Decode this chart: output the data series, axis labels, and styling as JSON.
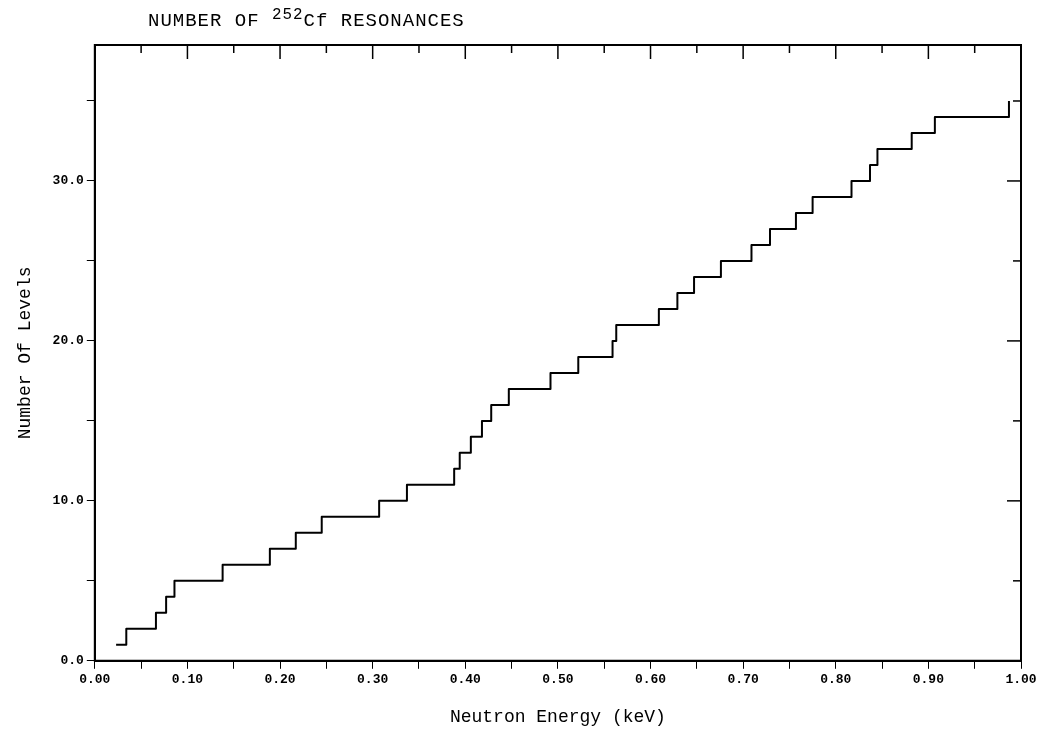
{
  "chart_data": {
    "type": "step",
    "title": "NUMBER OF $^{252}$Cf RESONANCES",
    "xlabel": "Neutron Energy (keV)",
    "ylabel": "Number Of Levels",
    "x": [
      0.023,
      0.034,
      0.066,
      0.077,
      0.086,
      0.138,
      0.189,
      0.217,
      0.245,
      0.307,
      0.337,
      0.388,
      0.394,
      0.406,
      0.418,
      0.428,
      0.447,
      0.492,
      0.522,
      0.559,
      0.563,
      0.609,
      0.629,
      0.647,
      0.676,
      0.709,
      0.729,
      0.757,
      0.775,
      0.817,
      0.837,
      0.845,
      0.882,
      0.907,
      0.987
    ],
    "values": [
      1,
      2,
      3,
      4,
      5,
      6,
      7,
      8,
      9,
      10,
      11,
      12,
      13,
      14,
      15,
      16,
      17,
      18,
      19,
      20,
      21,
      22,
      23,
      24,
      25,
      26,
      27,
      28,
      29,
      30,
      31,
      32,
      33,
      34,
      35
    ],
    "color": "#000000",
    "xlim": [
      0,
      1
    ],
    "xticks": [
      {
        "value": 0,
        "label": "0.00"
      },
      {
        "value": 0.05,
        "label": null
      },
      {
        "value": 0.1,
        "label": "0.10"
      },
      {
        "value": 0.15,
        "label": null
      },
      {
        "value": 0.2,
        "label": "0.20"
      },
      {
        "value": 0.25,
        "label": null
      },
      {
        "value": 0.3,
        "label": "0.30"
      },
      {
        "value": 0.35,
        "label": null
      },
      {
        "value": 0.4,
        "label": "0.40"
      },
      {
        "value": 0.45,
        "label": null
      },
      {
        "value": 0.5,
        "label": "0.50"
      },
      {
        "value": 0.55,
        "label": null
      },
      {
        "value": 0.6,
        "label": "0.60"
      },
      {
        "value": 0.65,
        "label": null
      },
      {
        "value": 0.7,
        "label": "0.70"
      },
      {
        "value": 0.75,
        "label": null
      },
      {
        "value": 0.8,
        "label": "0.80"
      },
      {
        "value": 0.85,
        "label": null
      },
      {
        "value": 0.9,
        "label": "0.90"
      },
      {
        "value": 0.95,
        "label": null
      },
      {
        "value": 1,
        "label": "1.00"
      }
    ],
    "ylim": [
      0,
      38.5
    ],
    "yticks": [
      {
        "value": 0,
        "label": "0.0"
      },
      {
        "value": 5,
        "label": null
      },
      {
        "value": 10,
        "label": "10.0"
      },
      {
        "value": 15,
        "label": null
      },
      {
        "value": 20,
        "label": "20.0"
      },
      {
        "value": 25,
        "label": null
      },
      {
        "value": 30,
        "label": "30.0"
      },
      {
        "value": 35,
        "label": null
      }
    ],
    "grid": false,
    "legend": false,
    "marker": "none",
    "line_style": "solid"
  }
}
